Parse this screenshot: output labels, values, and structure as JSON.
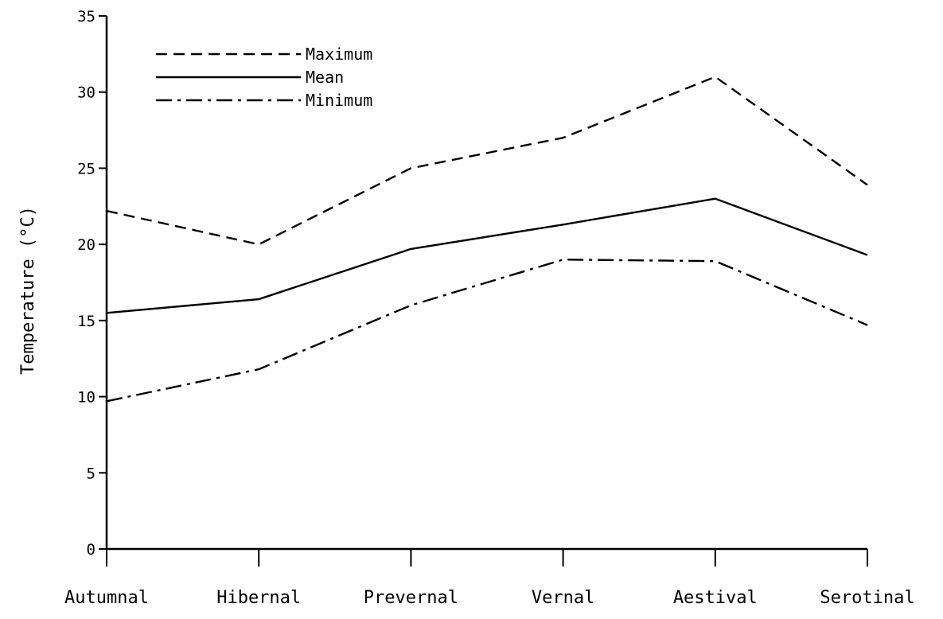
{
  "chart_data": {
    "type": "line",
    "title": "",
    "xlabel": "",
    "ylabel": "Temperature (°C)",
    "categories": [
      "Autumnal",
      "Hibernal",
      "Prevernal",
      "Vernal",
      "Aestival",
      "Serotinal"
    ],
    "ylim": [
      0,
      35
    ],
    "yticks": [
      0,
      5,
      10,
      15,
      20,
      25,
      30,
      35
    ],
    "grid": false,
    "legend_position": "top-left",
    "series": [
      {
        "name": "Maximum",
        "style": "dashed",
        "color": "#000000",
        "values": [
          22.2,
          20.0,
          25.0,
          27.0,
          31.0,
          23.9
        ]
      },
      {
        "name": "Mean",
        "style": "solid",
        "color": "#000000",
        "values": [
          15.5,
          16.4,
          19.7,
          21.3,
          23.0,
          19.3
        ]
      },
      {
        "name": "Minimum",
        "style": "dashdot",
        "color": "#000000",
        "values": [
          9.7,
          11.8,
          16.0,
          19.0,
          18.9,
          14.7
        ]
      }
    ]
  }
}
